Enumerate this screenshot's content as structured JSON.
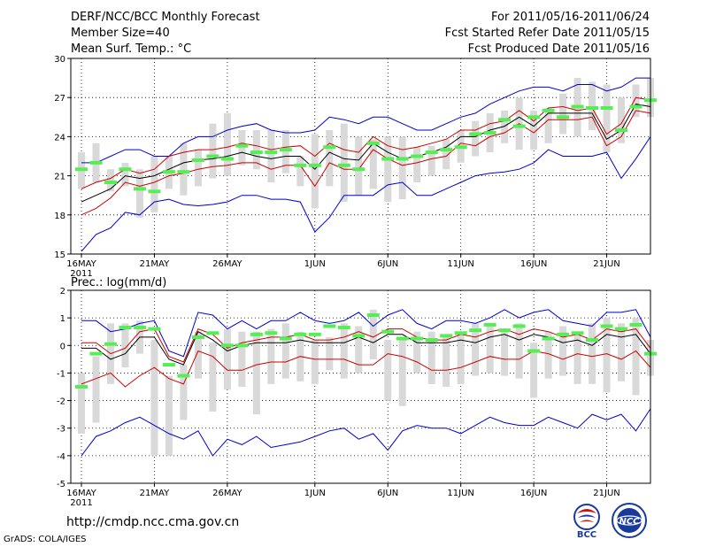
{
  "header": {
    "title": "DERF/NCC/BCC Monthly Forecast",
    "member_size": "Member Size=40",
    "variable": "Mean Surf. Temp.: °C",
    "period": "For 2011/05/16-2011/06/24",
    "started": "Fcst Started Refer Date 2011/05/15",
    "produced": "Fcst Produced Date 2011/05/16"
  },
  "footer": {
    "url": "http://cmdp.ncc.cma.gov.cn",
    "credit": "GrADS: COLA/IGES",
    "logo_left_text": "BCC",
    "logo_right_text": "NCC"
  },
  "colors": {
    "ensemble_box": "#d9d9d9",
    "median": "#55ee55",
    "mean": "#000000",
    "inner_band": "#cc0000",
    "outer_band": "#0000cc"
  },
  "chart_data": [
    {
      "type": "line",
      "title": "Mean Surf. Temp.: °C",
      "x_tick_labels": [
        "16MAY",
        "21MAY",
        "26MAY",
        "1JUN",
        "6JUN",
        "11JUN",
        "16JUN",
        "21JUN"
      ],
      "x_tick_days": [
        0,
        5,
        10,
        16,
        21,
        26,
        31,
        36
      ],
      "x_year_label": "2011",
      "ylim": [
        15,
        30
      ],
      "y_ticks": [
        15,
        18,
        21,
        24,
        27,
        30
      ],
      "days": 40,
      "series": [
        {
          "name": "upper",
          "values": [
            22.0,
            22.0,
            22.5,
            23.0,
            23.0,
            22.5,
            22.5,
            23.5,
            24.0,
            24.0,
            24.5,
            24.8,
            25.0,
            24.5,
            24.3,
            24.3,
            24.5,
            25.5,
            25.3,
            25.0,
            25.5,
            25.5,
            25.0,
            24.5,
            24.5,
            25.0,
            25.5,
            25.8,
            26.5,
            27.0,
            27.5,
            27.8,
            27.8,
            27.5,
            28.0,
            28.0,
            27.5,
            27.8,
            28.5,
            28.5
          ]
        },
        {
          "name": "upper_mid",
          "values": [
            20.0,
            20.5,
            20.8,
            21.5,
            21.2,
            21.5,
            22.5,
            22.8,
            23.0,
            23.0,
            23.2,
            23.5,
            23.3,
            23.0,
            23.2,
            23.3,
            22.5,
            23.5,
            23.0,
            22.8,
            24.0,
            23.3,
            23.0,
            23.2,
            23.5,
            23.8,
            24.5,
            24.5,
            25.0,
            25.2,
            26.0,
            25.2,
            26.2,
            26.3,
            26.0,
            26.2,
            24.2,
            25.0,
            27.0,
            26.8
          ]
        },
        {
          "name": "mean",
          "values": [
            19.0,
            19.5,
            20.0,
            21.0,
            20.8,
            21.0,
            21.5,
            22.0,
            22.2,
            22.3,
            22.5,
            22.8,
            22.5,
            22.3,
            22.5,
            22.5,
            21.5,
            22.8,
            22.3,
            22.2,
            23.5,
            22.8,
            22.3,
            22.5,
            22.8,
            23.2,
            24.0,
            24.0,
            24.5,
            24.8,
            25.5,
            24.8,
            25.8,
            25.8,
            25.8,
            25.8,
            23.8,
            24.5,
            26.5,
            26.3
          ]
        },
        {
          "name": "lower_mid",
          "values": [
            18.0,
            18.5,
            19.3,
            20.5,
            20.2,
            20.5,
            21.0,
            21.2,
            21.5,
            21.7,
            21.8,
            22.0,
            22.0,
            21.5,
            21.8,
            21.8,
            20.2,
            22.0,
            21.5,
            21.5,
            23.0,
            22.3,
            21.8,
            22.0,
            22.3,
            22.5,
            23.5,
            23.3,
            24.0,
            24.3,
            25.0,
            24.3,
            25.3,
            25.3,
            25.3,
            25.5,
            23.3,
            24.0,
            26.0,
            25.8
          ]
        },
        {
          "name": "lower",
          "values": [
            15.2,
            16.5,
            17.0,
            18.2,
            18.0,
            19.0,
            19.2,
            18.8,
            18.7,
            18.8,
            19.0,
            19.5,
            19.5,
            19.2,
            19.2,
            19.0,
            16.7,
            17.8,
            19.5,
            19.5,
            19.5,
            20.3,
            20.5,
            19.5,
            19.5,
            20.0,
            20.5,
            21.0,
            21.2,
            21.3,
            21.5,
            22.0,
            23.0,
            22.5,
            22.5,
            22.5,
            22.8,
            20.8,
            22.3,
            24.0
          ]
        },
        {
          "name": "median",
          "values": [
            21.5,
            22.0,
            20.5,
            21.5,
            20.0,
            19.8,
            21.3,
            21.3,
            22.2,
            22.5,
            22.3,
            23.3,
            22.8,
            22.8,
            23.0,
            21.8,
            21.8,
            23.2,
            21.8,
            21.5,
            23.5,
            22.3,
            22.3,
            22.5,
            22.8,
            23.0,
            23.2,
            24.2,
            24.3,
            25.3,
            24.8,
            25.5,
            26.0,
            25.5,
            26.3,
            26.2,
            26.2,
            24.5,
            26.3,
            26.8
          ]
        },
        {
          "name": "box_max",
          "values": [
            22.8,
            23.5,
            21.5,
            22.0,
            21.5,
            22.5,
            22.5,
            23.5,
            23.0,
            25.0,
            25.8,
            24.5,
            24.5,
            24.5,
            24.5,
            22.5,
            24.2,
            24.5,
            25.0,
            24.0,
            23.8,
            24.0,
            24.0,
            23.2,
            23.3,
            23.8,
            24.5,
            25.2,
            25.8,
            26.0,
            27.0,
            26.0,
            26.2,
            27.3,
            28.5,
            28.2,
            28.0,
            27.0,
            28.0,
            28.5
          ]
        },
        {
          "name": "box_min",
          "values": [
            20.0,
            20.5,
            19.8,
            20.2,
            17.8,
            18.2,
            20.0,
            19.5,
            20.2,
            20.8,
            21.0,
            21.8,
            21.5,
            20.5,
            21.2,
            20.2,
            18.5,
            20.2,
            19.0,
            19.5,
            20.0,
            19.0,
            19.2,
            20.5,
            21.0,
            21.5,
            22.0,
            22.5,
            22.8,
            23.5,
            23.0,
            23.0,
            23.5,
            24.2,
            24.0,
            24.5,
            22.8,
            23.5,
            25.5,
            25.5
          ]
        }
      ]
    },
    {
      "type": "line",
      "title": "Prec.: log(mm/d)",
      "x_tick_labels": [
        "16MAY",
        "21MAY",
        "26MAY",
        "1JUN",
        "6JUN",
        "11JUN",
        "16JUN",
        "21JUN"
      ],
      "x_tick_days": [
        0,
        5,
        10,
        16,
        21,
        26,
        31,
        36
      ],
      "x_year_label": "2011",
      "ylim": [
        -5,
        2
      ],
      "y_ticks": [
        -5,
        -4,
        -3,
        -2,
        -1,
        0,
        1,
        2
      ],
      "days": 40,
      "series": [
        {
          "name": "upper",
          "values": [
            0.9,
            0.9,
            0.5,
            0.6,
            0.8,
            0.9,
            -0.2,
            -0.4,
            1.2,
            1.1,
            0.6,
            0.9,
            0.6,
            0.9,
            0.9,
            1.2,
            0.9,
            0.8,
            0.9,
            1.2,
            0.7,
            1.1,
            1.3,
            0.8,
            0.6,
            0.9,
            0.9,
            0.8,
            1.0,
            1.3,
            1.0,
            1.2,
            1.3,
            0.9,
            0.8,
            0.7,
            1.2,
            1.2,
            1.3,
            0.3
          ]
        },
        {
          "name": "upper_mid",
          "values": [
            0.1,
            0.1,
            -0.3,
            -0.1,
            0.5,
            0.6,
            -0.4,
            -0.6,
            0.6,
            0.4,
            -0.1,
            0.1,
            0.2,
            0.3,
            0.3,
            0.4,
            0.2,
            0.2,
            0.3,
            0.5,
            0.3,
            0.6,
            0.6,
            0.3,
            0.2,
            0.2,
            0.4,
            0.3,
            0.5,
            0.6,
            0.4,
            0.6,
            0.5,
            0.3,
            0.4,
            0.2,
            0.6,
            0.5,
            0.6,
            -0.1
          ]
        },
        {
          "name": "mean",
          "values": [
            -0.1,
            -0.1,
            -0.5,
            -0.3,
            0.3,
            0.3,
            -0.5,
            -0.7,
            0.5,
            0.2,
            -0.2,
            0.0,
            0.1,
            0.1,
            0.1,
            0.2,
            0.1,
            0.1,
            0.1,
            0.3,
            0.1,
            0.4,
            0.4,
            0.1,
            0.1,
            0.1,
            0.2,
            0.1,
            0.3,
            0.4,
            0.2,
            0.4,
            0.3,
            0.1,
            0.2,
            0.0,
            0.4,
            0.3,
            0.4,
            -0.3
          ]
        },
        {
          "name": "lower_mid",
          "values": [
            -1.4,
            -1.2,
            -1.0,
            -1.5,
            -1.1,
            -0.8,
            -1.2,
            -1.4,
            -0.2,
            -0.4,
            -0.9,
            -0.9,
            -0.7,
            -0.6,
            -0.6,
            -0.4,
            -0.5,
            -0.5,
            -0.5,
            -0.7,
            -0.7,
            -0.3,
            -0.4,
            -0.6,
            -0.9,
            -0.9,
            -0.8,
            -0.6,
            -0.4,
            -0.5,
            -0.5,
            -0.2,
            -0.3,
            -0.5,
            -0.3,
            -0.4,
            -0.3,
            -0.5,
            -0.2,
            -0.8
          ]
        },
        {
          "name": "lower",
          "values": [
            -4.0,
            -3.3,
            -3.1,
            -2.8,
            -2.6,
            -2.9,
            -3.2,
            -3.4,
            -3.1,
            -4.0,
            -3.4,
            -3.6,
            -3.3,
            -3.7,
            -3.6,
            -3.5,
            -3.3,
            -3.1,
            -3.0,
            -3.4,
            -3.2,
            -3.8,
            -3.1,
            -2.9,
            -3.0,
            -3.0,
            -3.2,
            -2.9,
            -2.6,
            -2.8,
            -2.9,
            -2.9,
            -2.6,
            -2.8,
            -3.0,
            -2.5,
            -2.7,
            -2.5,
            -3.1,
            -2.3
          ]
        },
        {
          "name": "median",
          "values": [
            -1.5,
            -0.3,
            0.05,
            0.65,
            0.65,
            0.6,
            -0.7,
            -1.1,
            0.3,
            0.45,
            0.0,
            0.0,
            0.4,
            0.45,
            0.25,
            0.4,
            0.4,
            0.7,
            0.65,
            0.35,
            1.1,
            0.5,
            0.25,
            0.25,
            0.2,
            0.35,
            0.45,
            0.55,
            0.75,
            0.55,
            0.7,
            -0.2,
            0.25,
            0.4,
            0.45,
            0.2,
            0.7,
            0.6,
            0.75,
            -0.3
          ]
        },
        {
          "name": "box_max",
          "values": [
            -1.0,
            -0.4,
            0.8,
            0.8,
            0.9,
            0.2,
            -1.1,
            -0.7,
            0.5,
            0.1,
            0.6,
            0.5,
            0.5,
            0.6,
            0.8,
            0.5,
            0.2,
            0.3,
            0.8,
            0.7,
            1.3,
            0.2,
            0.3,
            0.5,
            0.5,
            0.3,
            0.5,
            0.8,
            0.8,
            0.5,
            0.8,
            0.1,
            0.5,
            0.7,
            0.5,
            0.8,
            1.0,
            0.8,
            1.0,
            0.2
          ]
        },
        {
          "name": "box_min",
          "values": [
            -3.2,
            -2.8,
            -1.4,
            -0.8,
            -0.3,
            -4.0,
            -4.0,
            -2.7,
            -1.2,
            -2.4,
            -1.6,
            -1.5,
            -2.5,
            -1.4,
            -1.2,
            -1.3,
            -1.4,
            -0.9,
            -1.2,
            -1.0,
            -0.5,
            -2.0,
            -2.2,
            -1.0,
            -1.4,
            -1.5,
            -1.4,
            -1.1,
            -1.0,
            -1.1,
            -1.2,
            -1.9,
            -1.2,
            -1.1,
            -1.4,
            -1.4,
            -1.7,
            -1.3,
            -1.8,
            -1.1
          ]
        }
      ]
    }
  ]
}
